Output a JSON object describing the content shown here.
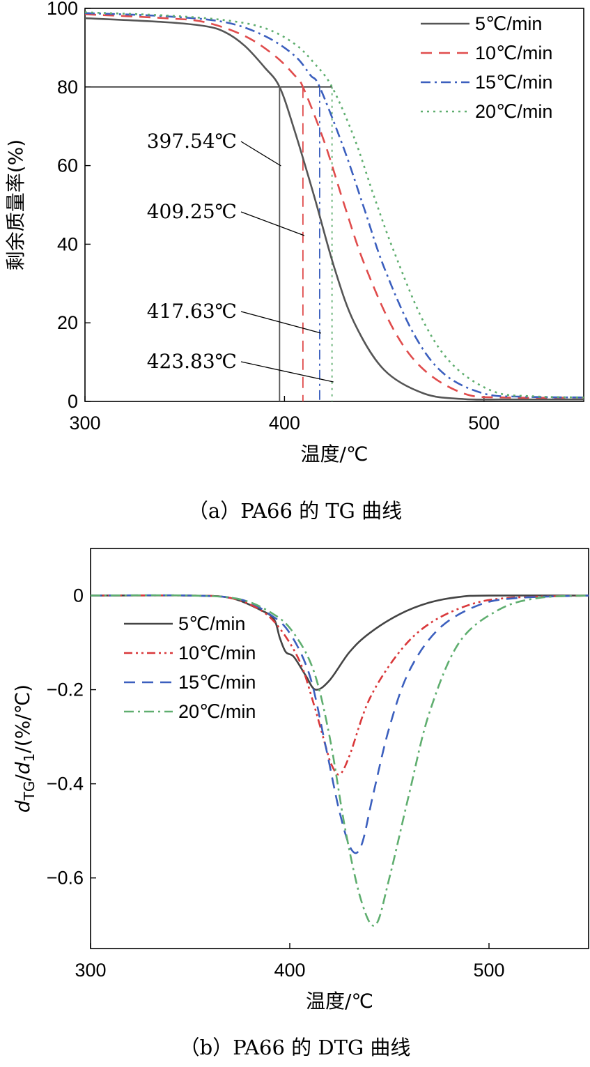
{
  "chart_data": [
    {
      "type": "line",
      "caption": "（a）PA66 的 TG 曲线",
      "xlabel": "温度/℃",
      "ylabel": "剩余质量率(%)",
      "xlim": [
        300,
        550
      ],
      "ylim": [
        0,
        100
      ],
      "xticks": [
        "300",
        "400",
        "500"
      ],
      "yticks": [
        "0",
        "20",
        "40",
        "60",
        "80",
        "100"
      ],
      "legend_position": "top-right",
      "grid": false,
      "reference_line": {
        "y": 80
      },
      "annotations": [
        {
          "text": "397.54℃",
          "x": 397.54
        },
        {
          "text": "409.25℃",
          "x": 409.25
        },
        {
          "text": "417.63℃",
          "x": 417.63
        },
        {
          "text": "423.83℃",
          "x": 423.83
        }
      ],
      "series": [
        {
          "name": "5℃/min",
          "color": "#555555",
          "style": "solid",
          "x": [
            300,
            340,
            360,
            370,
            380,
            390,
            397.54,
            405,
            415,
            425,
            435,
            450,
            470,
            490,
            510,
            550
          ],
          "y": [
            97.5,
            96.5,
            95.5,
            94,
            90.5,
            85,
            80,
            69,
            52,
            34,
            20,
            8,
            2,
            0.6,
            0.5,
            0.5
          ]
        },
        {
          "name": "10℃/min",
          "color": "#e04c4c",
          "style": "dash",
          "x": [
            300,
            340,
            360,
            380,
            395,
            405,
            409.25,
            420,
            430,
            440,
            455,
            470,
            490,
            510,
            550
          ],
          "y": [
            98.5,
            97.5,
            96.5,
            93,
            88,
            83,
            80,
            66,
            50,
            35,
            18,
            8,
            2,
            1,
            1
          ]
        },
        {
          "name": "15℃/min",
          "color": "#3b5fbe",
          "style": "dashdot",
          "x": [
            300,
            340,
            370,
            390,
            405,
            413,
            417.63,
            430,
            440,
            450,
            465,
            480,
            500,
            520,
            550
          ],
          "y": [
            98.8,
            98,
            96.5,
            93,
            88,
            83,
            80,
            64,
            49,
            34,
            17,
            7,
            2,
            1.2,
            1
          ]
        },
        {
          "name": "20℃/min",
          "color": "#5fae6f",
          "style": "dot",
          "x": [
            300,
            340,
            370,
            390,
            405,
            415,
            423.83,
            435,
            445,
            455,
            470,
            485,
            505,
            525,
            550
          ],
          "y": [
            99,
            98.2,
            97,
            95,
            91,
            86,
            80,
            67,
            52,
            38,
            20,
            9,
            2.5,
            1.3,
            1
          ]
        }
      ]
    },
    {
      "type": "line",
      "caption": "（b）PA66 的 DTG 曲线",
      "xlabel": "温度/℃",
      "ylabel": "dTG/d1/(%/℃)",
      "xlim": [
        300,
        550
      ],
      "ylim": [
        -0.75,
        0.1
      ],
      "xticks": [
        "300",
        "400",
        "500"
      ],
      "yticks": [
        "0",
        "−0.2",
        "−0.4",
        "−0.6"
      ],
      "legend_position": "top-left",
      "grid": false,
      "series": [
        {
          "name": "5℃/min",
          "color": "#444444",
          "style": "solid",
          "x": [
            300,
            350,
            370,
            385,
            392,
            395,
            398,
            402,
            408,
            413,
            420,
            430,
            440,
            455,
            470,
            485,
            500,
            550
          ],
          "y": [
            0,
            0,
            -0.005,
            -0.03,
            -0.05,
            -0.09,
            -0.12,
            -0.13,
            -0.17,
            -0.2,
            -0.18,
            -0.12,
            -0.08,
            -0.04,
            -0.015,
            -0.003,
            0,
            0
          ]
        },
        {
          "name": "10℃/min",
          "color": "#d9383a",
          "style": "dashdotdot",
          "x": [
            300,
            350,
            370,
            385,
            395,
            405,
            412,
            418,
            421,
            425,
            430,
            440,
            455,
            470,
            490,
            510,
            550
          ],
          "y": [
            0,
            0,
            -0.005,
            -0.03,
            -0.07,
            -0.14,
            -0.23,
            -0.32,
            -0.36,
            -0.38,
            -0.34,
            -0.22,
            -0.12,
            -0.06,
            -0.02,
            -0.005,
            0
          ]
        },
        {
          "name": "15℃/min",
          "color": "#3b5fbe",
          "style": "dash",
          "x": [
            300,
            350,
            375,
            390,
            400,
            410,
            418,
            425,
            431,
            436,
            442,
            450,
            460,
            475,
            495,
            515,
            550
          ],
          "y": [
            0,
            0,
            -0.008,
            -0.04,
            -0.08,
            -0.17,
            -0.32,
            -0.46,
            -0.54,
            -0.53,
            -0.42,
            -0.28,
            -0.16,
            -0.07,
            -0.02,
            -0.005,
            0
          ]
        },
        {
          "name": "20℃/min",
          "color": "#5fae6f",
          "style": "dashdot",
          "x": [
            300,
            350,
            375,
            392,
            402,
            412,
            420,
            428,
            436,
            443,
            450,
            460,
            470,
            485,
            505,
            525,
            550
          ],
          "y": [
            0,
            0,
            -0.008,
            -0.04,
            -0.08,
            -0.16,
            -0.3,
            -0.5,
            -0.65,
            -0.7,
            -0.6,
            -0.42,
            -0.25,
            -0.1,
            -0.03,
            -0.005,
            0
          ]
        }
      ]
    }
  ]
}
